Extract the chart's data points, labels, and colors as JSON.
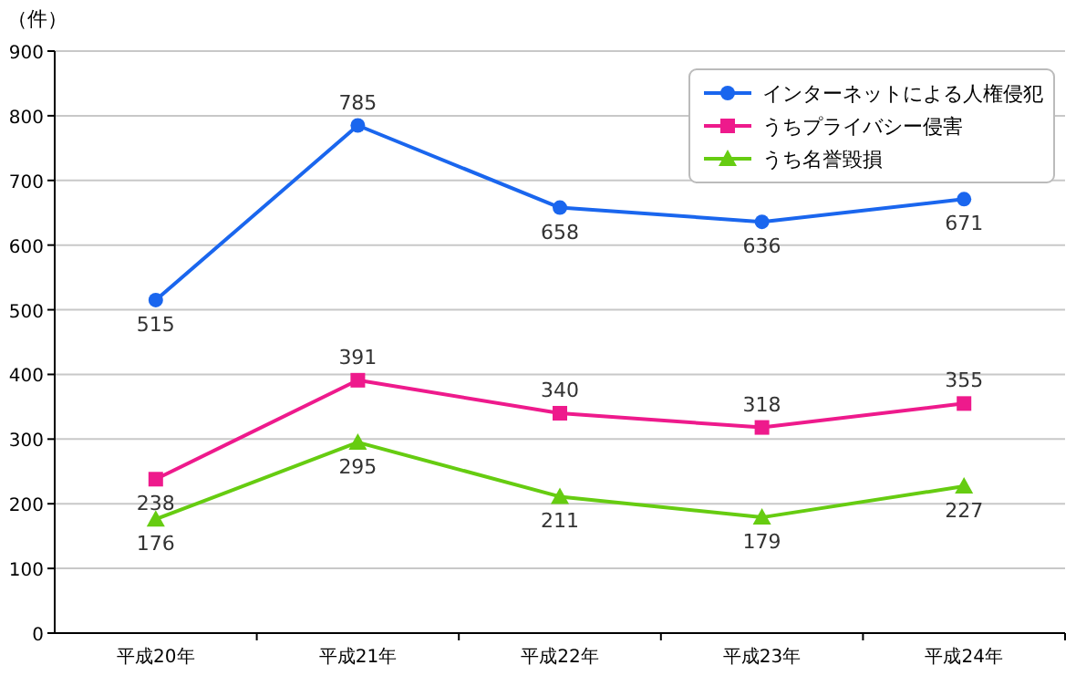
{
  "chart_data": {
    "type": "line",
    "ylabel": "（件）",
    "categories": [
      "平成20年",
      "平成21年",
      "平成22年",
      "平成23年",
      "平成24年"
    ],
    "series": [
      {
        "name": "インターネットによる人権侵犯",
        "color": "#1a66ee",
        "marker": "circle",
        "values": [
          515,
          785,
          658,
          636,
          671
        ]
      },
      {
        "name": "うちプライバシー侵害",
        "color": "#ee1a8c",
        "marker": "square",
        "values": [
          238,
          391,
          340,
          318,
          355
        ]
      },
      {
        "name": "うち名誉毀損",
        "color": "#66cc11",
        "marker": "triangle",
        "values": [
          176,
          295,
          211,
          179,
          227
        ]
      }
    ],
    "ylim": [
      0,
      900
    ],
    "yticks": [
      0,
      100,
      200,
      300,
      400,
      500,
      600,
      700,
      800,
      900
    ],
    "grid": "y",
    "legend": "top right",
    "data_labels": true
  }
}
